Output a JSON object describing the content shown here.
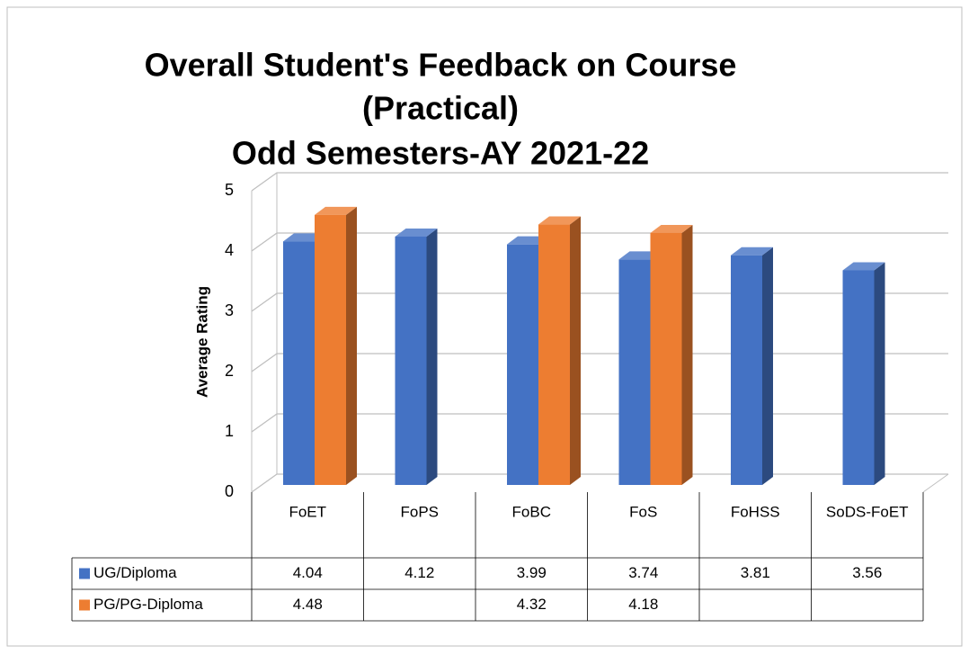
{
  "chart_data": {
    "type": "bar3d",
    "title": [
      "Overall Student's Feedback on Course",
      "(Practical)",
      "Odd Semesters-AY 2021-22"
    ],
    "ylabel": "Average Rating",
    "categories": [
      "FoET",
      "FoPS",
      "FoBC",
      "FoS",
      "FoHSS",
      "SoDS-FoET"
    ],
    "series": [
      {
        "name": "UG/Diploma",
        "color": "#4472c4",
        "values": [
          4.04,
          4.12,
          3.99,
          3.74,
          3.81,
          3.56
        ]
      },
      {
        "name": "PG/PG-Diploma",
        "color": "#ed7d31",
        "values": [
          4.48,
          null,
          4.32,
          4.18,
          null,
          null
        ]
      }
    ],
    "ylim": [
      0,
      5
    ],
    "yticks": [
      0,
      1,
      2,
      3,
      4,
      5
    ],
    "grid": true,
    "data_table": true
  }
}
